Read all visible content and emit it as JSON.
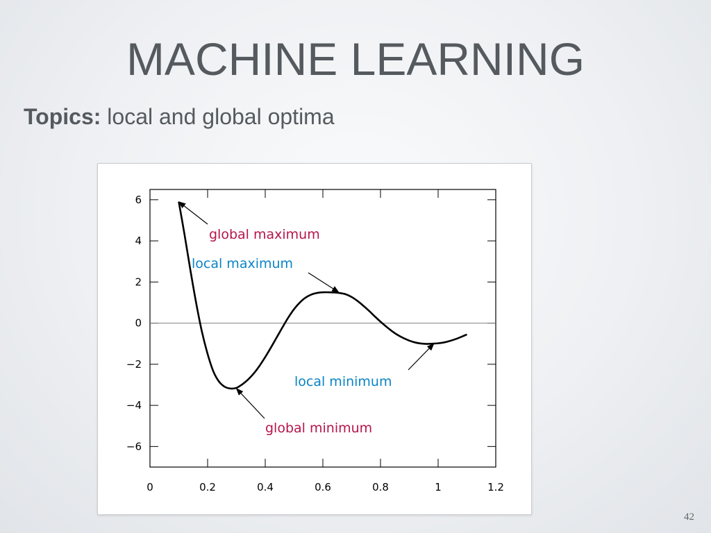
{
  "slide": {
    "title": "MACHINE LEARNING",
    "topics_label": "Topics:",
    "topics_text": "local and global optima",
    "page_number": "42"
  },
  "colors": {
    "title_text": "#555a5f",
    "global_annotation": "#b5154b",
    "local_annotation": "#0a84c6",
    "curve": "#000000",
    "zero_line": "#808080"
  },
  "chart_data": {
    "type": "line",
    "title": "",
    "xlabel": "",
    "ylabel": "",
    "xlim": [
      0,
      1.2
    ],
    "ylim": [
      -7,
      6.5
    ],
    "x_ticks": [
      0,
      0.2,
      0.4,
      0.6,
      0.8,
      1,
      1.2
    ],
    "x_tick_labels": [
      "0",
      "0.2",
      "0.4",
      "0.6",
      "0.8",
      "1",
      "1.2"
    ],
    "y_ticks": [
      6,
      4,
      2,
      0,
      -2,
      -4,
      -6
    ],
    "y_tick_labels": [
      "6",
      "4",
      "2",
      "0",
      "−2",
      "−4",
      "−6"
    ],
    "grid": false,
    "zero_line": true,
    "series": [
      {
        "x": [
          0.1,
          0.12,
          0.14,
          0.16,
          0.18,
          0.2,
          0.22,
          0.24,
          0.26,
          0.28,
          0.3,
          0.32,
          0.34,
          0.36,
          0.38,
          0.4,
          0.42,
          0.44,
          0.46,
          0.48,
          0.5,
          0.52,
          0.54,
          0.56,
          0.58,
          0.6,
          0.62,
          0.64,
          0.66,
          0.68,
          0.7,
          0.72,
          0.74,
          0.76,
          0.78,
          0.8,
          0.82,
          0.84,
          0.86,
          0.88,
          0.9,
          0.92,
          0.94,
          0.96,
          0.98,
          1.0,
          1.02,
          1.04,
          1.06,
          1.08,
          1.1
        ],
        "y": [
          5.9,
          4.3,
          2.6,
          1.0,
          -0.4,
          -1.5,
          -2.35,
          -2.85,
          -3.1,
          -3.18,
          -3.15,
          -2.98,
          -2.75,
          -2.45,
          -2.08,
          -1.65,
          -1.18,
          -0.69,
          -0.2,
          0.27,
          0.68,
          1.0,
          1.24,
          1.39,
          1.47,
          1.5,
          1.5,
          1.49,
          1.46,
          1.4,
          1.27,
          1.08,
          0.85,
          0.6,
          0.33,
          0.07,
          -0.17,
          -0.39,
          -0.58,
          -0.73,
          -0.85,
          -0.94,
          -0.99,
          -1.01,
          -1.0,
          -0.98,
          -0.94,
          -0.87,
          -0.78,
          -0.67,
          -0.55
        ]
      }
    ],
    "annotations": [
      {
        "text": "global maximum",
        "kind": "global",
        "point": [
          0.1,
          5.9
        ]
      },
      {
        "text": "local maximum",
        "kind": "local",
        "point": [
          0.655,
          1.5
        ]
      },
      {
        "text": "local minimum",
        "kind": "local",
        "point": [
          0.985,
          -1.0
        ]
      },
      {
        "text": "global minimum",
        "kind": "global",
        "point": [
          0.3,
          -3.18
        ]
      }
    ]
  }
}
